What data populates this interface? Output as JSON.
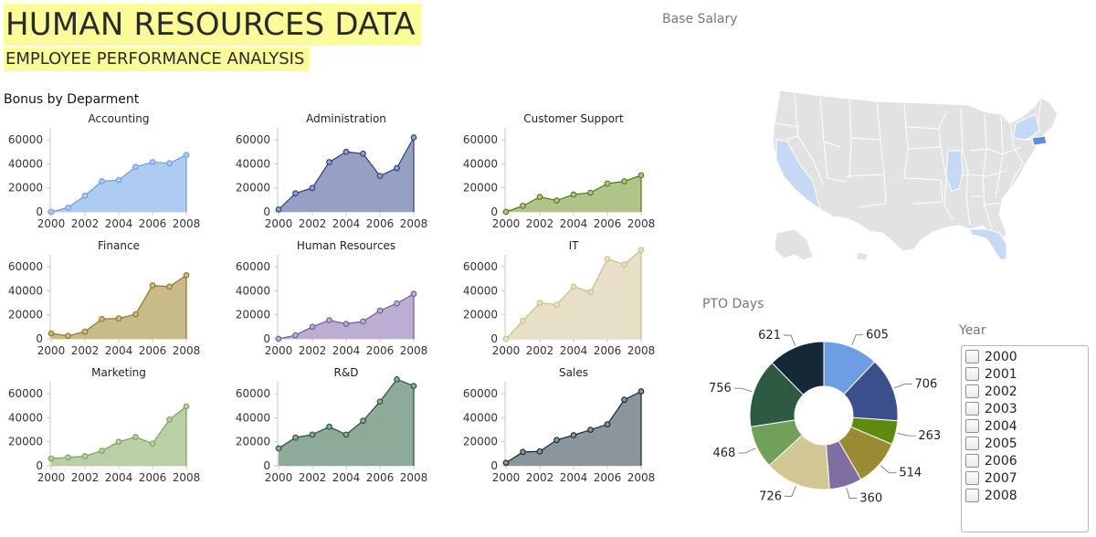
{
  "header": {
    "title": "HUMAN RESOURCES DATA",
    "subtitle": "EMPLOYEE PERFORMANCE ANALYSIS",
    "bonus_section": "Bonus by Deparment",
    "base_salary_title": "Base Salary",
    "pto_title": "PTO Days"
  },
  "year_filter": {
    "title": "Year",
    "options": [
      "2000",
      "2001",
      "2002",
      "2003",
      "2004",
      "2005",
      "2006",
      "2007",
      "2008"
    ]
  },
  "map": {
    "fill": "#e2e2e2",
    "highlight_light": "#c5d9f4",
    "highlight_dark": "#5b8fdc",
    "highlighted_states": [
      "California",
      "Illinois",
      "New York",
      "Florida",
      "Massachusetts"
    ]
  },
  "chart_data": [
    {
      "type": "area",
      "title": "Accounting",
      "color": "#6f9be6",
      "fill": "#aecbf2",
      "x": [
        2000,
        2001,
        2002,
        2003,
        2004,
        2005,
        2006,
        2007,
        2008
      ],
      "values": [
        0,
        3500,
        13500,
        25500,
        26500,
        37500,
        41500,
        40500,
        47500
      ],
      "ylim": [
        0,
        70000
      ],
      "yticks": [
        0,
        20000,
        40000,
        60000
      ],
      "xticks": [
        2000,
        2002,
        2004,
        2006,
        2008
      ]
    },
    {
      "type": "area",
      "title": "Administration",
      "color": "#2b3d7a",
      "fill": "#95a0c4",
      "x": [
        2000,
        2001,
        2002,
        2003,
        2004,
        2005,
        2006,
        2007,
        2008
      ],
      "values": [
        2000,
        15500,
        20000,
        41500,
        50000,
        48500,
        30000,
        36500,
        62000
      ],
      "ylim": [
        0,
        70000
      ],
      "yticks": [
        0,
        20000,
        40000,
        60000
      ],
      "xticks": [
        2000,
        2002,
        2004,
        2006,
        2008
      ]
    },
    {
      "type": "area",
      "title": "Customer Support",
      "color": "#4f7a10",
      "fill": "#b0c48a",
      "x": [
        2000,
        2001,
        2002,
        2003,
        2004,
        2005,
        2006,
        2007,
        2008
      ],
      "values": [
        0,
        5000,
        12500,
        9500,
        14500,
        16000,
        23500,
        25500,
        30500
      ],
      "ylim": [
        0,
        70000
      ],
      "yticks": [
        0,
        20000,
        40000,
        60000
      ],
      "xticks": [
        2000,
        2002,
        2004,
        2006,
        2008
      ]
    },
    {
      "type": "area",
      "title": "Finance",
      "color": "#8c7a1e",
      "fill": "#c9ba8a",
      "x": [
        2000,
        2001,
        2002,
        2003,
        2004,
        2005,
        2006,
        2007,
        2008
      ],
      "values": [
        4500,
        2500,
        6000,
        16500,
        17000,
        20500,
        44500,
        43500,
        53000
      ],
      "ylim": [
        0,
        70000
      ],
      "yticks": [
        0,
        20000,
        40000,
        60000
      ],
      "xticks": [
        2000,
        2002,
        2004,
        2006,
        2008
      ]
    },
    {
      "type": "area",
      "title": "Human Resources",
      "color": "#6a5a96",
      "fill": "#bbaed2",
      "x": [
        2000,
        2001,
        2002,
        2003,
        2004,
        2005,
        2006,
        2007,
        2008
      ],
      "values": [
        0,
        3000,
        10000,
        15500,
        12500,
        14500,
        23500,
        29500,
        37500
      ],
      "ylim": [
        0,
        70000
      ],
      "yticks": [
        0,
        20000,
        40000,
        60000
      ],
      "xticks": [
        2000,
        2002,
        2004,
        2006,
        2008
      ]
    },
    {
      "type": "area",
      "title": "IT",
      "color": "#c8be8a",
      "fill": "#e7e0c6",
      "x": [
        2000,
        2001,
        2002,
        2003,
        2004,
        2005,
        2006,
        2007,
        2008
      ],
      "values": [
        0,
        15000,
        30000,
        28500,
        43500,
        39000,
        66500,
        62000,
        74000
      ],
      "ylim": [
        0,
        70000
      ],
      "yticks": [
        0,
        20000,
        40000,
        60000
      ],
      "xticks": [
        2000,
        2002,
        2004,
        2006,
        2008
      ]
    },
    {
      "type": "area",
      "title": "Marketing",
      "color": "#7aa05c",
      "fill": "#b9cfa6",
      "x": [
        2000,
        2001,
        2002,
        2003,
        2004,
        2005,
        2006,
        2007,
        2008
      ],
      "values": [
        6000,
        7000,
        8000,
        12500,
        20000,
        24000,
        18500,
        38500,
        49500
      ],
      "ylim": [
        0,
        70000
      ],
      "yticks": [
        0,
        20000,
        40000,
        60000
      ],
      "xticks": [
        2000,
        2002,
        2004,
        2006,
        2008
      ]
    },
    {
      "type": "area",
      "title": "R&D",
      "color": "#24503a",
      "fill": "#8eaa98",
      "x": [
        2000,
        2001,
        2002,
        2003,
        2004,
        2005,
        2006,
        2007,
        2008
      ],
      "values": [
        14500,
        23500,
        26000,
        32500,
        26000,
        37500,
        53500,
        72000,
        66500
      ],
      "ylim": [
        0,
        70000
      ],
      "yticks": [
        0,
        20000,
        40000,
        60000
      ],
      "xticks": [
        2000,
        2002,
        2004,
        2006,
        2008
      ]
    },
    {
      "type": "area",
      "title": "Sales",
      "color": "#152530",
      "fill": "#8a969c",
      "x": [
        2000,
        2001,
        2002,
        2003,
        2004,
        2005,
        2006,
        2007,
        2008
      ],
      "values": [
        2500,
        11500,
        12000,
        21500,
        25500,
        30000,
        34500,
        55000,
        62000
      ],
      "ylim": [
        0,
        70000
      ],
      "yticks": [
        0,
        20000,
        40000,
        60000
      ],
      "xticks": [
        2000,
        2002,
        2004,
        2006,
        2008
      ]
    },
    {
      "type": "pie",
      "title": "PTO Days",
      "donut": true,
      "values": [
        605,
        706,
        263,
        514,
        360,
        726,
        468,
        756,
        621
      ],
      "colors": [
        "#6d9de2",
        "#3a4f8b",
        "#5e8a10",
        "#9b8a34",
        "#7e6fa0",
        "#d1c794",
        "#71a05a",
        "#2e5a44",
        "#152838"
      ]
    }
  ]
}
